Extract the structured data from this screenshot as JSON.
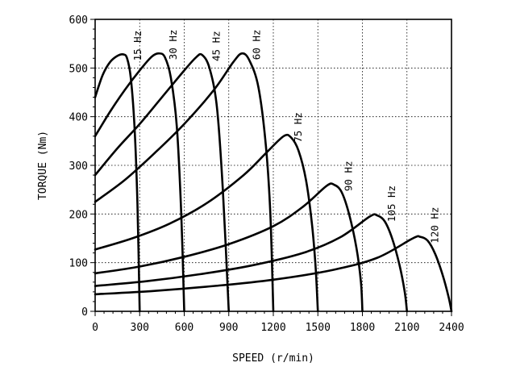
{
  "chart_data": {
    "type": "line",
    "title": "",
    "xlabel": "SPEED (r/min)",
    "ylabel": "TORQUE (Nm)",
    "xlim": [
      0,
      2400
    ],
    "ylim": [
      0,
      600
    ],
    "xticks": [
      0,
      300,
      600,
      900,
      1200,
      1500,
      1800,
      2100,
      2400
    ],
    "yticks": [
      0,
      100,
      200,
      300,
      400,
      500,
      600
    ],
    "xtick_labels": [
      "0",
      "300",
      "600",
      "900",
      "1200",
      "1500",
      "1800",
      "2100",
      "2400"
    ],
    "ytick_labels": [
      "0",
      "100",
      "200",
      "300",
      "400",
      "500",
      "600"
    ],
    "grid": true,
    "series": [
      {
        "name": "15 Hz",
        "label": "15 Hz",
        "x": [
          0,
          50,
          100,
          150,
          190,
          215,
          240,
          265,
          285,
          300
        ],
        "y": [
          440,
          485,
          512,
          525,
          528,
          520,
          480,
          380,
          220,
          0
        ]
      },
      {
        "name": "30 Hz",
        "label": "30 Hz",
        "x": [
          0,
          100,
          200,
          300,
          380,
          430,
          470,
          510,
          550,
          580,
          600
        ],
        "y": [
          360,
          410,
          455,
          495,
          523,
          530,
          522,
          480,
          380,
          200,
          0
        ]
      },
      {
        "name": "45 Hz",
        "label": "45 Hz",
        "x": [
          0,
          150,
          300,
          450,
          600,
          680,
          720,
          770,
          820,
          860,
          900
        ],
        "y": [
          280,
          335,
          385,
          440,
          495,
          522,
          527,
          500,
          420,
          250,
          0
        ]
      },
      {
        "name": "60 Hz",
        "label": "60 Hz",
        "x": [
          0,
          200,
          400,
          600,
          800,
          930,
          990,
          1040,
          1100,
          1150,
          1180,
          1200
        ],
        "y": [
          225,
          270,
          325,
          385,
          455,
          512,
          530,
          515,
          460,
          340,
          200,
          0
        ]
      },
      {
        "name": "75 Hz",
        "label": "75 Hz",
        "x": [
          0,
          250,
          500,
          750,
          1000,
          1150,
          1270,
          1320,
          1370,
          1420,
          1460,
          1485,
          1500
        ],
        "y": [
          127,
          150,
          180,
          222,
          280,
          325,
          360,
          357,
          330,
          270,
          180,
          90,
          0
        ]
      },
      {
        "name": "90 Hz",
        "label": "90 Hz",
        "x": [
          0,
          300,
          600,
          900,
          1200,
          1400,
          1560,
          1610,
          1660,
          1710,
          1760,
          1790,
          1800
        ],
        "y": [
          78,
          92,
          112,
          138,
          175,
          215,
          258,
          260,
          245,
          200,
          130,
          60,
          0
        ]
      },
      {
        "name": "105 Hz",
        "label": "105 Hz",
        "x": [
          0,
          350,
          700,
          1050,
          1400,
          1650,
          1850,
          1900,
          1950,
          2000,
          2050,
          2085,
          2100
        ],
        "y": [
          52,
          62,
          76,
          94,
          120,
          152,
          195,
          197,
          185,
          150,
          95,
          40,
          0
        ]
      },
      {
        "name": "120 Hz",
        "label": "120 Hz",
        "x": [
          0,
          400,
          800,
          1200,
          1600,
          1900,
          2140,
          2190,
          2240,
          2290,
          2340,
          2380,
          2400
        ],
        "y": [
          35,
          42,
          52,
          65,
          85,
          110,
          150,
          153,
          145,
          118,
          75,
          30,
          0
        ]
      }
    ]
  }
}
